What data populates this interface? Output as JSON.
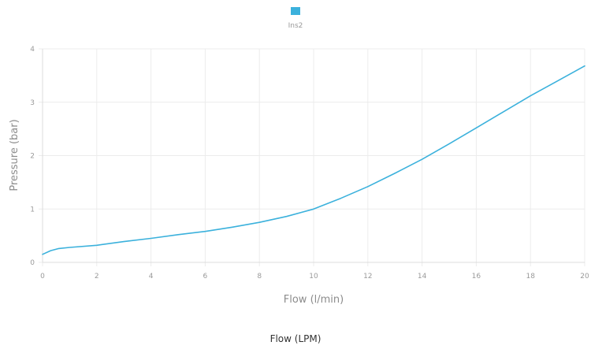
{
  "caption": "Flow (LPM)",
  "chart_data": {
    "type": "line",
    "title": "",
    "xlabel": "Flow (l/min)",
    "ylabel": "Pressure (bar)",
    "xlim": [
      0,
      20
    ],
    "ylim": [
      0,
      4
    ],
    "xticks": [
      0,
      2,
      4,
      6,
      8,
      10,
      12,
      14,
      16,
      18,
      20
    ],
    "yticks": [
      0,
      1,
      2,
      3,
      4
    ],
    "grid": true,
    "legend": "top-center",
    "series": [
      {
        "name": "Ins2",
        "color": "#3bb1dc",
        "x": [
          0,
          0.3,
          0.6,
          1,
          2,
          3,
          4,
          5,
          6,
          7,
          8,
          9,
          10,
          11,
          12,
          13,
          14,
          15,
          16,
          17,
          18,
          19,
          20
        ],
        "y": [
          0.15,
          0.22,
          0.26,
          0.28,
          0.32,
          0.39,
          0.45,
          0.52,
          0.58,
          0.66,
          0.75,
          0.86,
          1.0,
          1.2,
          1.42,
          1.67,
          1.93,
          2.22,
          2.52,
          2.82,
          3.12,
          3.4,
          3.68
        ]
      }
    ]
  }
}
